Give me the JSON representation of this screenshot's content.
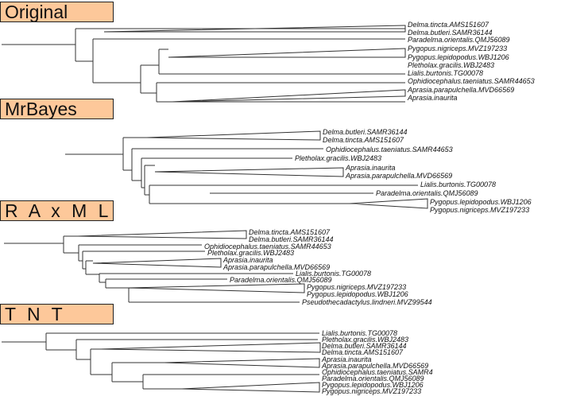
{
  "panels": [
    {
      "title": "Original",
      "taxa": [
        "Delma.tincta.AMS151607",
        "Delma.butleri.SAMR36144",
        "Paradelma.orientalis.QMJ56089",
        "Pygopus.nigriceps.MVZ197233",
        "Pygopus.lepidopodus.WBJ1206",
        "Pletholax.gracilis.WBJ2483",
        "Lialis.burtonis.TG00078",
        "Ophidiocephalus.taeniatus.SAMR44653",
        "Aprasia.parapulchella.MVD66569",
        "Aprasia.inaurita"
      ]
    },
    {
      "title": "MrBayes",
      "taxa": [
        "Delma.butleri.SAMR36144",
        "Delma.tincta.AMS151607",
        "Ophidiocephalus.taeniatus.SAMR44653",
        "Pletholax.gracilis.WBJ2483",
        "Aprasia.inaurita",
        "Aprasia.parapulchella.MVD66569",
        "Lialis.burtonis.TG00078",
        "Paradelma.orientalis.QMJ56089",
        "Pygopus.lepidopodus.WBJ1206",
        "Pygopus.nigriceps.MVZ197233"
      ]
    },
    {
      "title": "R A x M L",
      "taxa": [
        "Delma.tincta.AMS151607",
        "Delma.butleri.SAMR36144",
        "Ophidiocephalus.taeniatus.SAMR44653",
        "Pletholax.gracilis.WBJ2483",
        "Aprasia.inaurita",
        "Aprasia.parapulchella.MVD66569",
        "Lialis.burtonis.TG00078",
        "Paradelma.orientalis.QMJ56089",
        "Pygopus.nigriceps.MVZ197233",
        "Pygopus.lepidopodus.WBJ1206",
        "Pseudothecadactylus.lindneri.MVZ99544"
      ]
    },
    {
      "title": "T N T",
      "taxa": [
        "Lialis.burtonis.TG00078",
        "Pletholax.gracilis.WBJ2483",
        "Delma.butleri.SAMR36144",
        "Delma.tincta.AMS151607",
        "Aprasia.inaurita",
        "Aprasia.parapulchella.MVD66569",
        "Ophidiocephalus.taeniatus.SAMR4",
        "Paradelma.orientalis.QMJ56089",
        "Pygopus.lepidopodus.WBJ1206",
        "Pygopus.nigriceps.MVZ197233"
      ]
    }
  ],
  "colors": {
    "label_fill": "#fdc89a",
    "label_border": "#222222",
    "line": "#333333",
    "text": "#111111"
  }
}
